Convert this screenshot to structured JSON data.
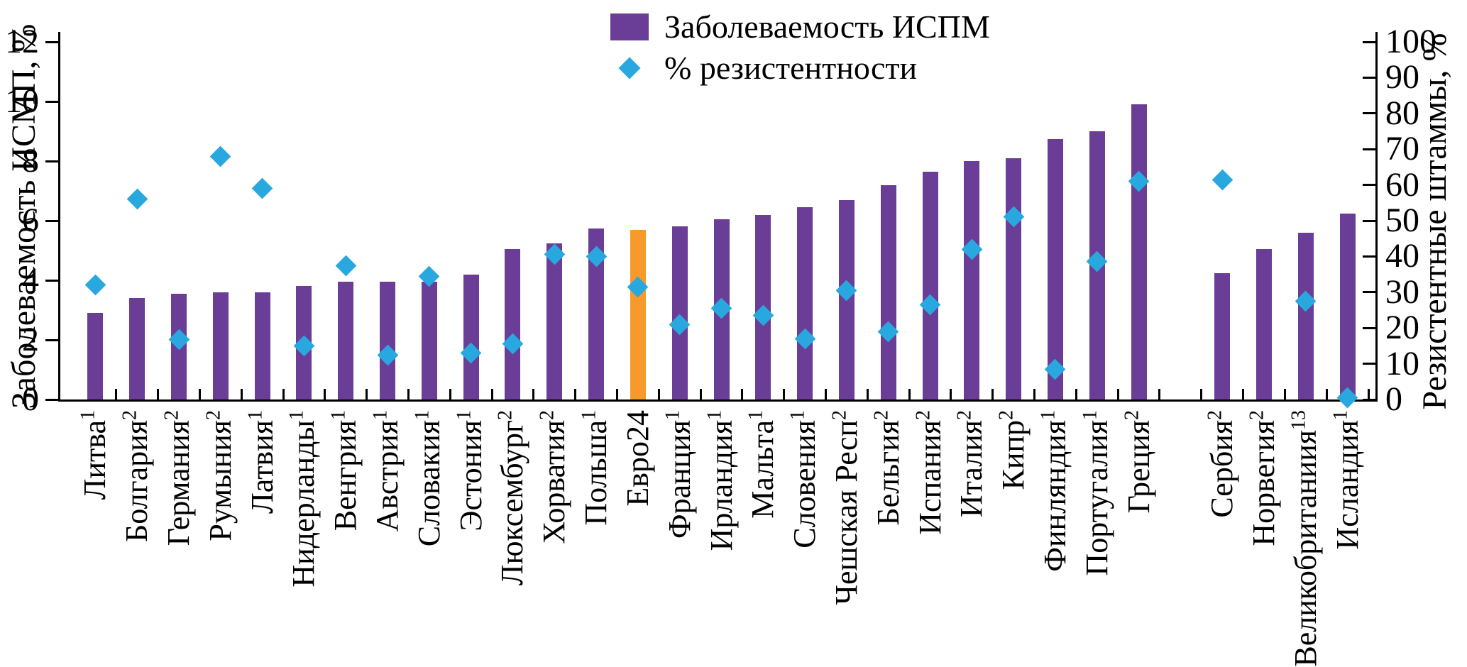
{
  "figure": {
    "left_axis_title": "Заболеваемость ИСМП, %",
    "right_axis_title": "Резистентные штаммы, %",
    "legend": [
      {
        "marker": "bar-swatch",
        "label": "Заболеваемость ИСПМ"
      },
      {
        "marker": "diamond",
        "label": "% резистентности"
      }
    ]
  },
  "colors": {
    "bar": "#6a3d96",
    "bar_highlight": "#f79a2b",
    "point": "#29a8e0",
    "axis": "#000000"
  },
  "chart_data": {
    "type": "bar",
    "title": "",
    "xlabel": "",
    "ylabel": "Заболеваемость ИСМП, %",
    "y2label": "Резистентные штаммы, %",
    "grid": false,
    "legend_position": "top-center",
    "left_axis": {
      "label": "Заболеваемость ИСМП, %",
      "min": 0,
      "max": 12,
      "ticks": [
        0,
        2,
        4,
        6,
        8,
        10,
        12
      ]
    },
    "right_axis": {
      "label": "Резистентные штаммы, %",
      "min": 0,
      "max": 100,
      "ticks": [
        0,
        10,
        20,
        30,
        40,
        50,
        60,
        70,
        80,
        90,
        100
      ]
    },
    "series": [
      {
        "name": "Заболеваемость ИСПМ",
        "type": "bar",
        "axis": "left"
      },
      {
        "name": "% резистентности",
        "type": "scatter-diamond",
        "axis": "right"
      }
    ],
    "points": [
      {
        "label": "Литва",
        "sup": "1",
        "incidence": 2.9,
        "resistance": 32
      },
      {
        "label": "Болгария",
        "sup": "2",
        "incidence": 3.4,
        "resistance": 56
      },
      {
        "label": "Германия",
        "sup": "2",
        "incidence": 3.55,
        "resistance": 16.7
      },
      {
        "label": "Румыния",
        "sup": "2",
        "incidence": 3.6,
        "resistance": 68
      },
      {
        "label": "Латвия",
        "sup": "1",
        "incidence": 3.6,
        "resistance": 59
      },
      {
        "label": "Нидерланды",
        "sup": "1",
        "incidence": 3.8,
        "resistance": 15
      },
      {
        "label": "Венгрия",
        "sup": "1",
        "incidence": 3.95,
        "resistance": 37.5
      },
      {
        "label": "Австрия",
        "sup": "1",
        "incidence": 3.95,
        "resistance": 12.5
      },
      {
        "label": "Словакия",
        "sup": "1",
        "incidence": 3.95,
        "resistance": 34.5
      },
      {
        "label": "Эстония",
        "sup": "1",
        "incidence": 4.2,
        "resistance": 13
      },
      {
        "label": "Люксембург",
        "sup": "2",
        "incidence": 5.05,
        "resistance": 15.5
      },
      {
        "label": "Хорватия",
        "sup": "2",
        "incidence": 5.25,
        "resistance": 40.5
      },
      {
        "label": "Польша",
        "sup": "1",
        "incidence": 5.75,
        "resistance": 40
      },
      {
        "label": "Евро24",
        "sup": "",
        "incidence": 5.7,
        "resistance": 31.5,
        "highlight": true
      },
      {
        "label": "Франция",
        "sup": "1",
        "incidence": 5.8,
        "resistance": 21
      },
      {
        "label": "Ирландия",
        "sup": "1",
        "incidence": 6.05,
        "resistance": 25.5
      },
      {
        "label": "Мальта",
        "sup": "1",
        "incidence": 6.2,
        "resistance": 23.5
      },
      {
        "label": "Словения",
        "sup": "1",
        "incidence": 6.45,
        "resistance": 17
      },
      {
        "label": "Чешская Респ",
        "sup": "2",
        "incidence": 6.7,
        "resistance": 30.5
      },
      {
        "label": "Бельгия",
        "sup": "2",
        "incidence": 7.2,
        "resistance": 19
      },
      {
        "label": "Испания",
        "sup": "2",
        "incidence": 7.65,
        "resistance": 26.5
      },
      {
        "label": "Италия",
        "sup": "2",
        "incidence": 8.0,
        "resistance": 42
      },
      {
        "label": "Кипр",
        "sup": "2",
        "incidence": 8.1,
        "resistance": 51
      },
      {
        "label": "Финляндия",
        "sup": "1",
        "incidence": 8.75,
        "resistance": 8.5
      },
      {
        "label": "Португалия",
        "sup": "1",
        "incidence": 9.0,
        "resistance": 38.5
      },
      {
        "label": "Греция",
        "sup": "2",
        "incidence": 9.9,
        "resistance": 61
      },
      {
        "label": "",
        "sup": "",
        "incidence": null,
        "resistance": null,
        "gap": true
      },
      {
        "label": "Сербия",
        "sup": "2",
        "incidence": 4.25,
        "resistance": 61.5
      },
      {
        "label": "Норвегия",
        "sup": "2",
        "incidence": 5.05,
        "resistance": null
      },
      {
        "label": "Великобританиия",
        "sup": "13",
        "incidence": 5.6,
        "resistance": 27.5
      },
      {
        "label": "Исландия",
        "sup": "1",
        "incidence": 6.25,
        "resistance": 0.5
      }
    ]
  }
}
